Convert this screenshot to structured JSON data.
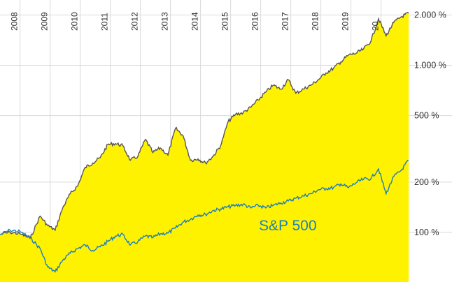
{
  "chart_data": {
    "type": "area",
    "title": "",
    "xlabel": "",
    "ylabel": "",
    "x_ticks": [
      "2008",
      "2009",
      "2010",
      "2011",
      "2012",
      "2013",
      "2014",
      "2015",
      "2016",
      "2017",
      "2018",
      "2019",
      "20"
    ],
    "y_scale": "log",
    "y_ticks": [
      {
        "value": 2000,
        "label": "2.000 %"
      },
      {
        "value": 1000,
        "label": "1.000 %"
      },
      {
        "value": 500,
        "label": "500 %"
      },
      {
        "value": 200,
        "label": "200 %"
      },
      {
        "value": 100,
        "label": "100 %"
      }
    ],
    "ylim": [
      55,
      2150
    ],
    "xlim": [
      "2007-05",
      "2020-12"
    ],
    "grid": true,
    "series": [
      {
        "name": "",
        "style": "area",
        "color": "#555555",
        "fill": "#fff200",
        "x": [
          "2007-05",
          "2007-09",
          "2008-01",
          "2008-05",
          "2008-09",
          "2008-12",
          "2009-03",
          "2009-06",
          "2009-09",
          "2009-12",
          "2010-03",
          "2010-06",
          "2010-09",
          "2010-12",
          "2011-03",
          "2011-06",
          "2011-09",
          "2011-12",
          "2012-03",
          "2012-06",
          "2012-09",
          "2012-12",
          "2013-03",
          "2013-06",
          "2013-09",
          "2013-12",
          "2014-03",
          "2014-06",
          "2014-09",
          "2014-12",
          "2015-03",
          "2015-06",
          "2015-09",
          "2015-12",
          "2016-03",
          "2016-06",
          "2016-09",
          "2016-12",
          "2017-03",
          "2017-06",
          "2017-09",
          "2017-12",
          "2018-03",
          "2018-06",
          "2018-09",
          "2018-12",
          "2019-03",
          "2019-06",
          "2019-09",
          "2019-12",
          "2020-03",
          "2020-06",
          "2020-09",
          "2020-12"
        ],
        "values": [
          97,
          100,
          98,
          92,
          125,
          110,
          103,
          140,
          170,
          190,
          245,
          260,
          280,
          335,
          340,
          330,
          270,
          285,
          360,
          300,
          320,
          290,
          420,
          380,
          270,
          275,
          260,
          285,
          330,
          460,
          510,
          520,
          560,
          620,
          690,
          760,
          720,
          820,
          680,
          720,
          760,
          820,
          900,
          960,
          1050,
          1150,
          1180,
          1250,
          1400,
          1900,
          1500,
          1800,
          1950,
          2050
        ]
      },
      {
        "name": "S&P 500",
        "style": "line",
        "color": "#1a7fbf",
        "x": [
          "2007-05",
          "2007-09",
          "2008-01",
          "2008-05",
          "2008-09",
          "2008-12",
          "2009-03",
          "2009-06",
          "2009-09",
          "2009-12",
          "2010-03",
          "2010-06",
          "2010-09",
          "2010-12",
          "2011-03",
          "2011-06",
          "2011-09",
          "2011-12",
          "2012-03",
          "2012-06",
          "2012-09",
          "2012-12",
          "2013-03",
          "2013-06",
          "2013-09",
          "2013-12",
          "2014-03",
          "2014-06",
          "2014-09",
          "2014-12",
          "2015-03",
          "2015-06",
          "2015-09",
          "2015-12",
          "2016-03",
          "2016-06",
          "2016-09",
          "2016-12",
          "2017-03",
          "2017-06",
          "2017-09",
          "2017-12",
          "2018-03",
          "2018-06",
          "2018-09",
          "2018-12",
          "2019-03",
          "2019-06",
          "2019-09",
          "2019-12",
          "2020-03",
          "2020-06",
          "2020-09",
          "2020-12"
        ],
        "values": [
          97,
          103,
          101,
          93,
          80,
          62,
          58,
          68,
          75,
          80,
          84,
          78,
          82,
          88,
          95,
          97,
          84,
          88,
          95,
          93,
          98,
          99,
          106,
          115,
          120,
          127,
          128,
          135,
          138,
          142,
          145,
          147,
          140,
          145,
          140,
          145,
          150,
          154,
          160,
          165,
          170,
          180,
          183,
          185,
          195,
          185,
          198,
          208,
          210,
          240,
          170,
          215,
          235,
          270
        ]
      }
    ],
    "annotations": [
      {
        "text": "S&P 500"
      }
    ]
  }
}
